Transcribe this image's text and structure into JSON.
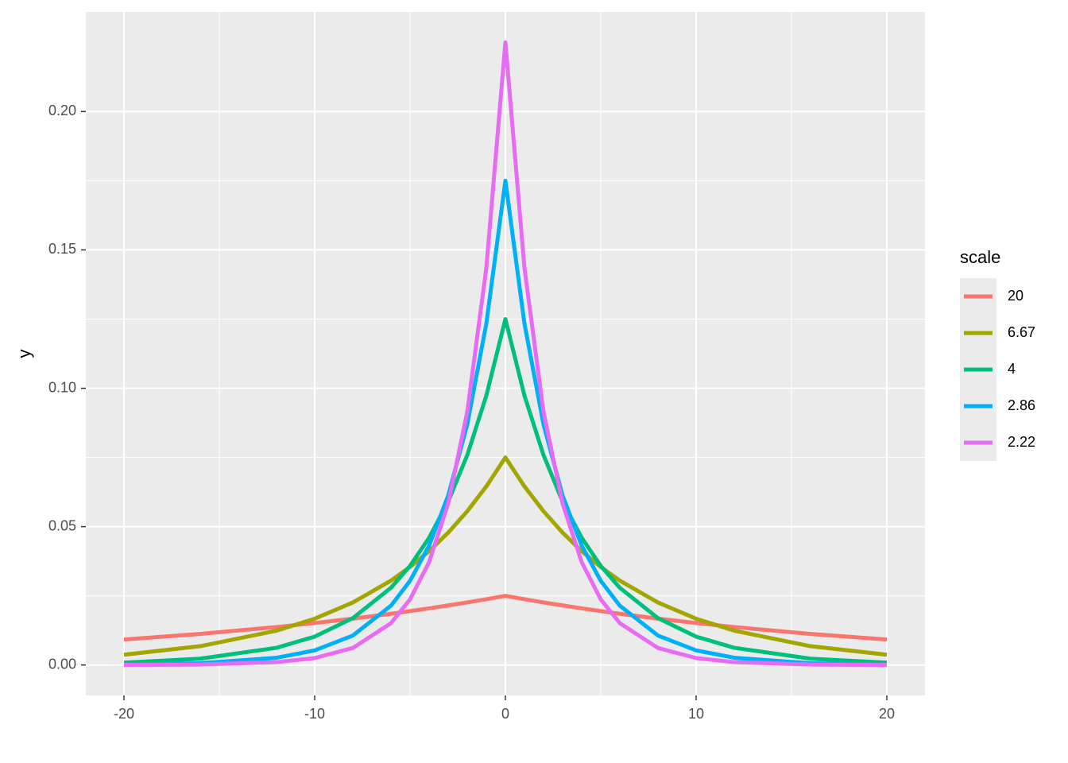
{
  "chart_data": {
    "type": "line",
    "y_label": "y",
    "legend_title": "scale",
    "legend": "right",
    "grid": true,
    "x": [
      -20,
      -16,
      -12,
      -10,
      -8,
      -6,
      -5,
      -4,
      -3,
      -2,
      -1,
      0,
      1,
      2,
      3,
      4,
      5,
      6,
      8,
      10,
      12,
      16,
      20
    ],
    "series": [
      {
        "name": "20",
        "color": "#F8766D",
        "values": [
          0.0092,
          0.01123,
          0.01372,
          0.01516,
          0.01676,
          0.01852,
          0.01947,
          0.02047,
          0.02152,
          0.02262,
          0.02378,
          0.025,
          0.02378,
          0.02262,
          0.02152,
          0.02047,
          0.01947,
          0.01852,
          0.01676,
          0.01516,
          0.01372,
          0.01123,
          0.0092
        ]
      },
      {
        "name": "6.67",
        "color": "#A3A500",
        "values": [
          0.00373,
          0.0068,
          0.0124,
          0.01673,
          0.02259,
          0.03049,
          0.03543,
          0.04116,
          0.04782,
          0.05556,
          0.06455,
          0.075,
          0.06455,
          0.05556,
          0.04782,
          0.04116,
          0.03543,
          0.03049,
          0.02259,
          0.01673,
          0.0124,
          0.0068,
          0.00373
        ]
      },
      {
        "name": "4",
        "color": "#00BF7D",
        "values": [
          0.00084,
          0.00229,
          0.00622,
          0.01026,
          0.01692,
          0.02789,
          0.03581,
          0.04598,
          0.05905,
          0.07582,
          0.09735,
          0.125,
          0.09735,
          0.07582,
          0.05905,
          0.04598,
          0.03581,
          0.02789,
          0.01692,
          0.01026,
          0.00622,
          0.00229,
          0.00084
        ]
      },
      {
        "name": "2.86",
        "color": "#00B0F6",
        "values": [
          0.00016,
          0.00065,
          0.00262,
          0.00528,
          0.01064,
          0.02143,
          0.03041,
          0.04315,
          0.06124,
          0.0869,
          0.12332,
          0.175,
          0.12332,
          0.0869,
          0.06124,
          0.04315,
          0.03041,
          0.02143,
          0.01064,
          0.00528,
          0.00262,
          0.00065,
          0.00016
        ]
      },
      {
        "name": "2.22",
        "color": "#E76BF3",
        "values": [
          3e-05,
          0.00017,
          0.00101,
          0.0025,
          0.00615,
          0.01512,
          0.02371,
          0.03719,
          0.05833,
          0.09148,
          0.14346,
          0.225,
          0.14346,
          0.09148,
          0.05833,
          0.03719,
          0.02371,
          0.01512,
          0.00615,
          0.0025,
          0.00101,
          0.00017,
          3e-05
        ]
      }
    ],
    "xlim": [
      -22,
      22
    ],
    "xticks": [
      -20,
      -10,
      0,
      10,
      20
    ],
    "ylim": [
      -0.011,
      0.236
    ],
    "yticks": [
      {
        "value": 0,
        "label": "0.00"
      },
      {
        "value": 0.05,
        "label": "0.05"
      },
      {
        "value": 0.1,
        "label": "0.10"
      },
      {
        "value": 0.15,
        "label": "0.15"
      },
      {
        "value": 0.2,
        "label": "0.20"
      }
    ]
  }
}
